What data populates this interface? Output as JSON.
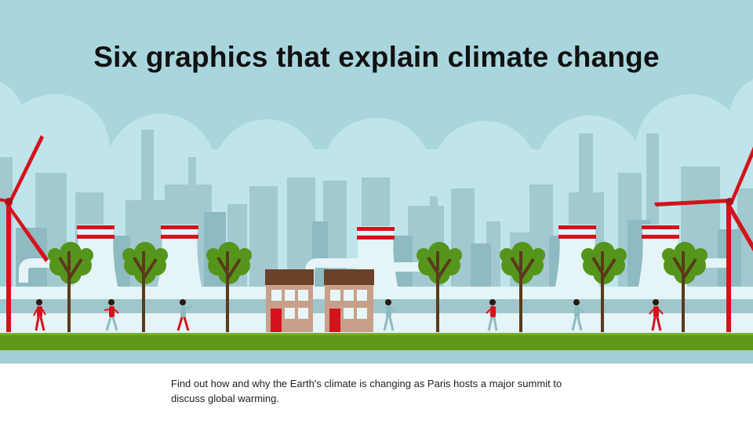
{
  "headline": "Six graphics that explain climate change",
  "caption": "Find out how and why the Earth's climate is changing as Paris hosts a major summit to discuss global warming.",
  "palette": {
    "sky": "#a9d6dd",
    "cloud": "#bfe5eb",
    "building_back": "#8fb9c0",
    "building_mid": "#9fc7cd",
    "cooling_tower": "#e4f4f7",
    "accent_red": "#d5121b",
    "tree_foliage": "#55951b",
    "trunk": "#5a3a1a",
    "grass": "#5e9616",
    "water": "#a3cdd4",
    "house_wall": "#c89f89",
    "house_roof": "#6b4128"
  },
  "illustration": {
    "wind_turbines": 2,
    "cooling_towers": 6,
    "trees": 8,
    "houses": 2,
    "people": 8
  }
}
